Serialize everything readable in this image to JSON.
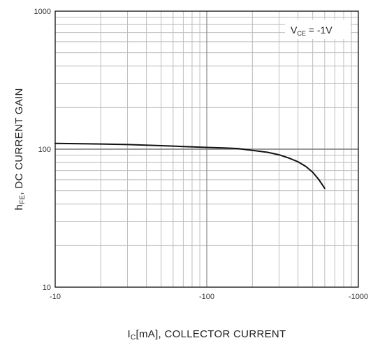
{
  "chart_data": {
    "type": "line",
    "xscale": "log",
    "yscale": "log",
    "grid": true,
    "xlim": [
      -10,
      -1000
    ],
    "ylim": [
      10,
      1000
    ],
    "x_ticks": [
      "-10",
      "-100",
      "-1000"
    ],
    "y_ticks": [
      "1000",
      "100",
      "10"
    ],
    "xlabel_main": "I",
    "xlabel_sub": "C",
    "xlabel_rest": "[mA], COLLECTOR CURRENT",
    "ylabel_main": "h",
    "ylabel_sub": "FE",
    "ylabel_rest": ", DC CURRENT GAIN",
    "annotation": {
      "main": "V",
      "sub": "CE",
      "rest": " = -1V"
    },
    "series": [
      {
        "x": [
          -10,
          -15,
          -20,
          -30,
          -50,
          -70,
          -100,
          -130,
          -160,
          -200,
          -250,
          -300,
          -350,
          -400,
          -450,
          -500,
          -550,
          -600
        ],
        "values": [
          110,
          109.5,
          109,
          108,
          106,
          104.5,
          103,
          102,
          101,
          98,
          95,
          91,
          86,
          81,
          75,
          68,
          60,
          52
        ]
      }
    ],
    "reference_line_y": 100
  }
}
